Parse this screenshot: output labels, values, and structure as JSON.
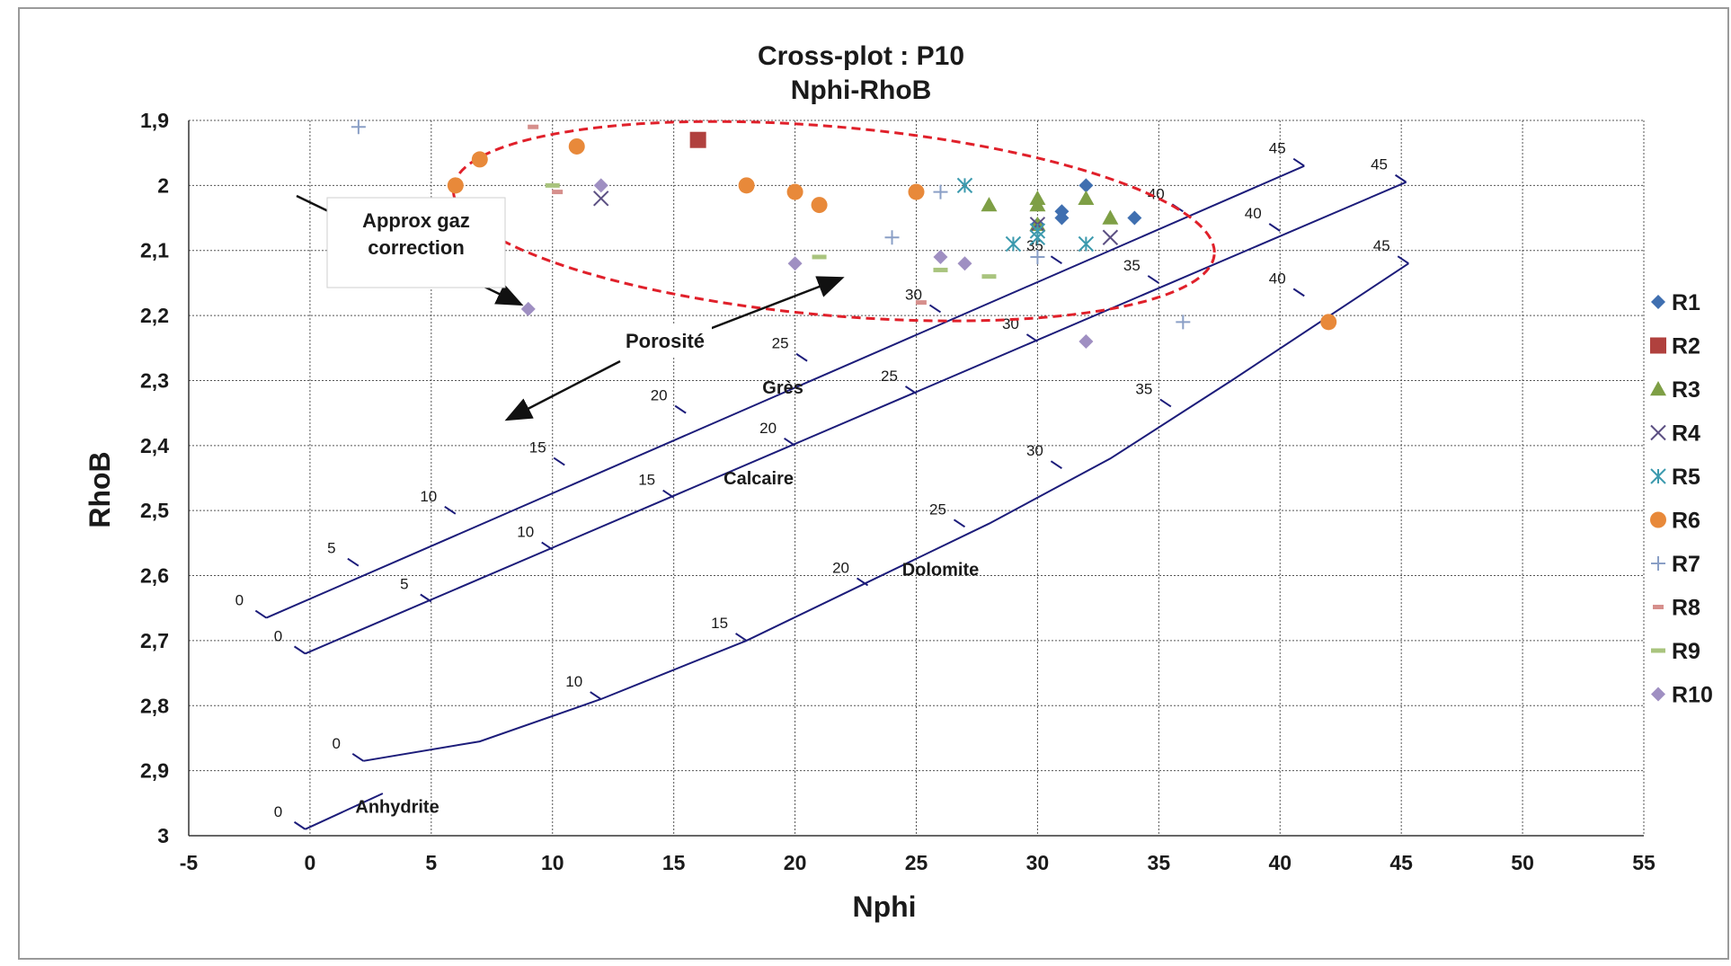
{
  "chart_data": {
    "type": "scatter",
    "title": "Cross-plot : P10",
    "subtitle": "Nphi-RhoB",
    "xlabel": "Nphi",
    "ylabel": "RhoB",
    "xlim": [
      -5,
      55
    ],
    "ylim": [
      1.9,
      3
    ],
    "y_inverted": true,
    "grid": true,
    "legend_position": "right",
    "x_ticks": [
      "-5",
      "0",
      "5",
      "10",
      "15",
      "20",
      "25",
      "30",
      "35",
      "40",
      "45",
      "50",
      "55"
    ],
    "x_tick_values": [
      -5,
      0,
      5,
      10,
      15,
      20,
      25,
      30,
      35,
      40,
      45,
      50,
      55
    ],
    "y_ticks": [
      "1,9",
      "2",
      "2,1",
      "2,2",
      "2,3",
      "2,4",
      "2,5",
      "2,6",
      "2,7",
      "2,8",
      "2,9",
      "3"
    ],
    "y_tick_values": [
      1.9,
      2.0,
      2.1,
      2.2,
      2.3,
      2.4,
      2.5,
      2.6,
      2.7,
      2.8,
      2.9,
      3.0
    ],
    "series": [
      {
        "name": "R1",
        "marker": "diamond",
        "color": "#3f6fb0",
        "points": [
          [
            31,
            2.04
          ],
          [
            31,
            2.05
          ],
          [
            32,
            2.0
          ],
          [
            34,
            2.05
          ],
          [
            30,
            2.06
          ]
        ]
      },
      {
        "name": "R2",
        "marker": "square",
        "color": "#b0413e",
        "points": [
          [
            16,
            1.93
          ]
        ]
      },
      {
        "name": "R3",
        "marker": "triangle",
        "color": "#7e9f45",
        "points": [
          [
            28,
            2.03
          ],
          [
            30,
            2.02
          ],
          [
            30,
            2.03
          ],
          [
            30,
            2.06
          ],
          [
            32,
            2.02
          ],
          [
            33,
            2.05
          ]
        ]
      },
      {
        "name": "R4",
        "marker": "x",
        "color": "#5b4f82",
        "points": [
          [
            12,
            2.02
          ],
          [
            30,
            2.06
          ],
          [
            33,
            2.08
          ]
        ]
      },
      {
        "name": "R5",
        "marker": "asterisk",
        "color": "#3c9aae",
        "points": [
          [
            27,
            2.0
          ],
          [
            29,
            2.09
          ],
          [
            30,
            2.07
          ],
          [
            30,
            2.08
          ],
          [
            32,
            2.09
          ]
        ]
      },
      {
        "name": "R6",
        "marker": "circle",
        "color": "#e8893a",
        "points": [
          [
            6,
            2.0
          ],
          [
            7,
            1.96
          ],
          [
            11,
            1.94
          ],
          [
            18,
            2.0
          ],
          [
            20,
            2.01
          ],
          [
            21,
            2.03
          ],
          [
            25,
            2.01
          ],
          [
            42,
            2.21
          ]
        ]
      },
      {
        "name": "R7",
        "marker": "plus",
        "color": "#8a9fc6",
        "points": [
          [
            2,
            1.91
          ],
          [
            24,
            2.08
          ],
          [
            26,
            2.01
          ],
          [
            30,
            2.11
          ],
          [
            36,
            2.21
          ]
        ]
      },
      {
        "name": "R8",
        "marker": "dash",
        "color": "#d68f8c",
        "points": [
          [
            9.2,
            1.91
          ],
          [
            10.2,
            2.01
          ],
          [
            25.2,
            2.18
          ]
        ]
      },
      {
        "name": "R9",
        "marker": "dash",
        "color": "#a9c47e",
        "points": [
          [
            10,
            2.0
          ],
          [
            21,
            2.11
          ],
          [
            26,
            2.13
          ],
          [
            28,
            2.14
          ]
        ]
      },
      {
        "name": "R10",
        "marker": "diamond",
        "color": "#9f8fc2",
        "points": [
          [
            9,
            2.19
          ],
          [
            12,
            2.0
          ],
          [
            20,
            2.12
          ],
          [
            26,
            2.11
          ],
          [
            27,
            2.12
          ],
          [
            32,
            2.24
          ]
        ]
      }
    ],
    "lithology_lines": [
      {
        "name": "Grès",
        "label_at": [
          19.5,
          2.32
        ],
        "points": [
          [
            -1.8,
            2.665
          ],
          [
            41,
            1.97
          ]
        ],
        "ticks": [
          [
            -1.8,
            2.665,
            "0"
          ],
          [
            2,
            2.585,
            "5"
          ],
          [
            6,
            2.505,
            "10"
          ],
          [
            10.5,
            2.43,
            "15"
          ],
          [
            15.5,
            2.35,
            "20"
          ],
          [
            20.5,
            2.27,
            "25"
          ],
          [
            26,
            2.195,
            "30"
          ],
          [
            31,
            2.12,
            "35"
          ],
          [
            36,
            2.04,
            "40"
          ],
          [
            41,
            1.97,
            "45"
          ]
        ]
      },
      {
        "name": "Calcaire",
        "label_at": [
          18.5,
          2.46
        ],
        "points": [
          [
            -0.2,
            2.72
          ],
          [
            45.2,
            1.995
          ]
        ],
        "ticks": [
          [
            -0.2,
            2.72,
            "0"
          ],
          [
            5,
            2.64,
            "5"
          ],
          [
            10,
            2.56,
            "10"
          ],
          [
            15,
            2.48,
            "15"
          ],
          [
            20,
            2.4,
            "20"
          ],
          [
            25,
            2.32,
            "25"
          ],
          [
            30,
            2.24,
            "30"
          ],
          [
            35,
            2.15,
            "35"
          ],
          [
            40,
            2.07,
            "40"
          ],
          [
            45.2,
            1.995,
            "45"
          ]
        ]
      },
      {
        "name": "Dolomite",
        "label_at": [
          26,
          2.6
        ],
        "points": [
          [
            2.2,
            2.885
          ],
          [
            7,
            2.855
          ],
          [
            12,
            2.79
          ],
          [
            18,
            2.7
          ],
          [
            23,
            2.61
          ],
          [
            28,
            2.52
          ],
          [
            33,
            2.42
          ],
          [
            38,
            2.3
          ],
          [
            45.3,
            2.12
          ]
        ],
        "ticks": [
          [
            2.2,
            2.885,
            "0"
          ],
          [
            12,
            2.79,
            "10"
          ],
          [
            18,
            2.7,
            "15"
          ],
          [
            23,
            2.615,
            "20"
          ],
          [
            27,
            2.525,
            "25"
          ],
          [
            31,
            2.435,
            "30"
          ],
          [
            35.5,
            2.34,
            "35"
          ],
          [
            41,
            2.17,
            "40"
          ],
          [
            45.3,
            2.12,
            "45"
          ]
        ]
      },
      {
        "name": "Anhydrite",
        "label_at": [
          3.6,
          2.965
        ],
        "points": [
          [
            -0.2,
            2.99
          ],
          [
            3,
            2.935
          ]
        ],
        "ticks": [
          [
            -0.2,
            2.99,
            "0"
          ]
        ]
      }
    ],
    "annotations": {
      "gas_box": "Approx gaz\ncorrection",
      "porosity_arrow": "Porosité"
    }
  }
}
